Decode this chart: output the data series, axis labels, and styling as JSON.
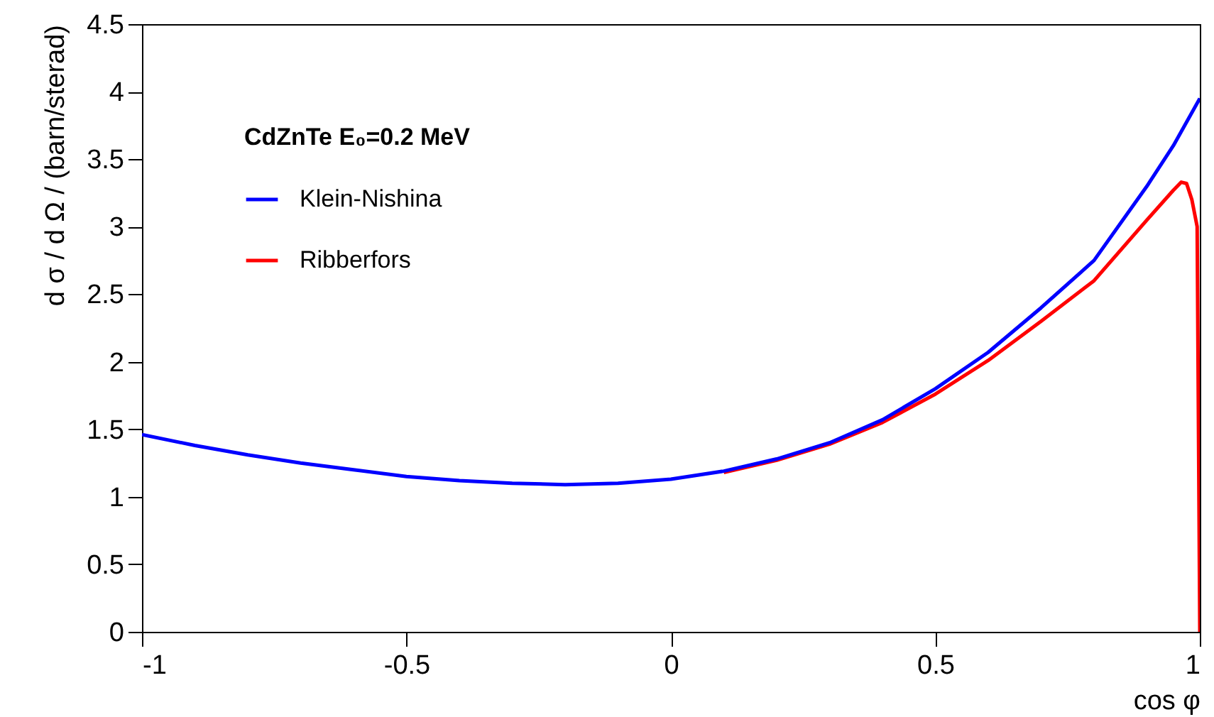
{
  "chart_data": {
    "type": "line",
    "xlabel": "cos φ",
    "ylabel": "d σ / d Ω / (barn/sterad)",
    "legend_title": "CdZnTe E₀=0.2 MeV",
    "legend": "top left",
    "grid": false,
    "marker": "none",
    "line_style": "solid",
    "xlim": [
      -1,
      1
    ],
    "xticks": [
      -1,
      -0.5,
      0,
      0.5,
      1
    ],
    "ylim": [
      0,
      4.5
    ],
    "yticks": [
      0,
      0.5,
      1,
      1.5,
      2,
      2.5,
      3,
      3.5,
      4,
      4.5
    ],
    "series": [
      {
        "name": "Klein-Nishina",
        "color": "#0000ff",
        "x": [
          -1,
          -0.9,
          -0.8,
          -0.7,
          -0.6,
          -0.5,
          -0.4,
          -0.3,
          -0.2,
          -0.1,
          0,
          0.1,
          0.2,
          0.3,
          0.4,
          0.5,
          0.6,
          0.7,
          0.8,
          0.9,
          0.95,
          1
        ],
        "values": [
          1.46,
          1.38,
          1.31,
          1.25,
          1.2,
          1.15,
          1.12,
          1.1,
          1.09,
          1.1,
          1.13,
          1.19,
          1.28,
          1.4,
          1.57,
          1.8,
          2.07,
          2.4,
          2.75,
          3.3,
          3.6,
          3.95
        ]
      },
      {
        "name": "Ribberfors",
        "color": "#ff0000",
        "x": [
          0.1,
          0.2,
          0.3,
          0.4,
          0.5,
          0.6,
          0.7,
          0.8,
          0.9,
          0.95,
          0.965,
          0.975,
          0.985,
          0.995,
          1
        ],
        "values": [
          1.18,
          1.27,
          1.39,
          1.55,
          1.76,
          2.01,
          2.3,
          2.6,
          3.05,
          3.27,
          3.33,
          3.32,
          3.2,
          3.0,
          0
        ]
      }
    ]
  }
}
